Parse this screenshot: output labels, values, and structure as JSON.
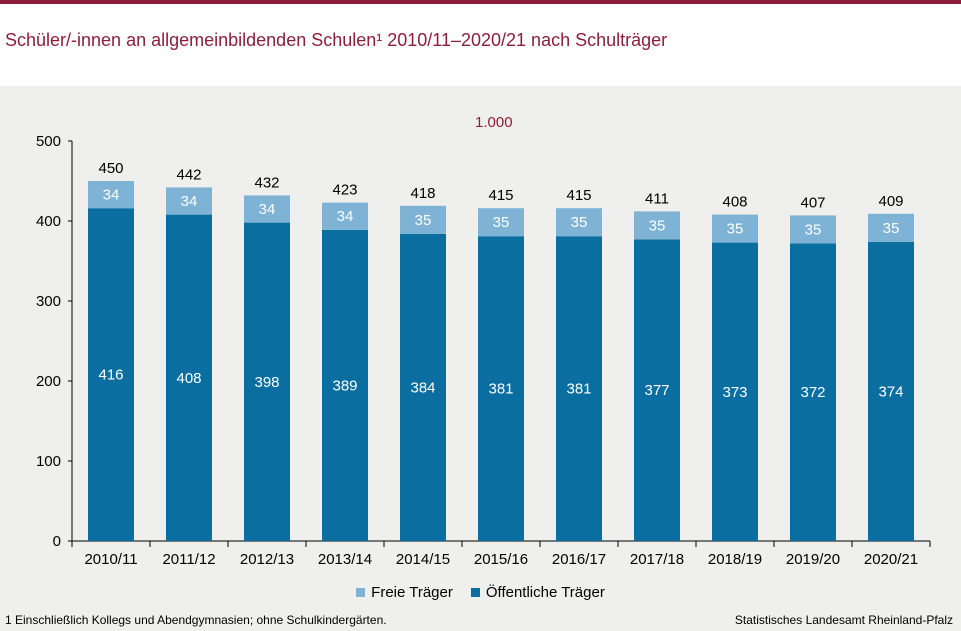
{
  "title": "Schüler/-innen an allgemeinbildenden Schulen¹ 2010/11–2020/21 nach Schulträger",
  "unit_label": "1.000",
  "footnote": "1 Einschließlich Kollegs und Abendgymnasien;  ohne Schulkindergärten.",
  "source": "Statistisches Landesamt Rheinland-Pfalz",
  "colors": {
    "accent": "#8b1f3a",
    "public": "#0a6ea1",
    "private": "#7fb3d5"
  },
  "chart_data": {
    "type": "bar",
    "stacked": true,
    "categories": [
      "2010/11",
      "2011/12",
      "2012/13",
      "2013/14",
      "2014/15",
      "2015/16",
      "2016/17",
      "2017/18",
      "2018/19",
      "2019/20",
      "2020/21"
    ],
    "series": [
      {
        "name": "Öffentliche Träger",
        "values": [
          416,
          408,
          398,
          389,
          384,
          381,
          381,
          377,
          373,
          372,
          374
        ]
      },
      {
        "name": "Freie Träger",
        "values": [
          34,
          34,
          34,
          34,
          35,
          35,
          35,
          35,
          35,
          35,
          35
        ]
      }
    ],
    "totals": [
      450,
      442,
      432,
      423,
      418,
      415,
      415,
      411,
      408,
      407,
      409
    ],
    "ylim": [
      0,
      500
    ],
    "yticks": [
      0,
      100,
      200,
      300,
      400,
      500
    ],
    "legend": [
      "Freie Träger",
      "Öffentliche Träger"
    ],
    "legend_position": "bottom"
  }
}
